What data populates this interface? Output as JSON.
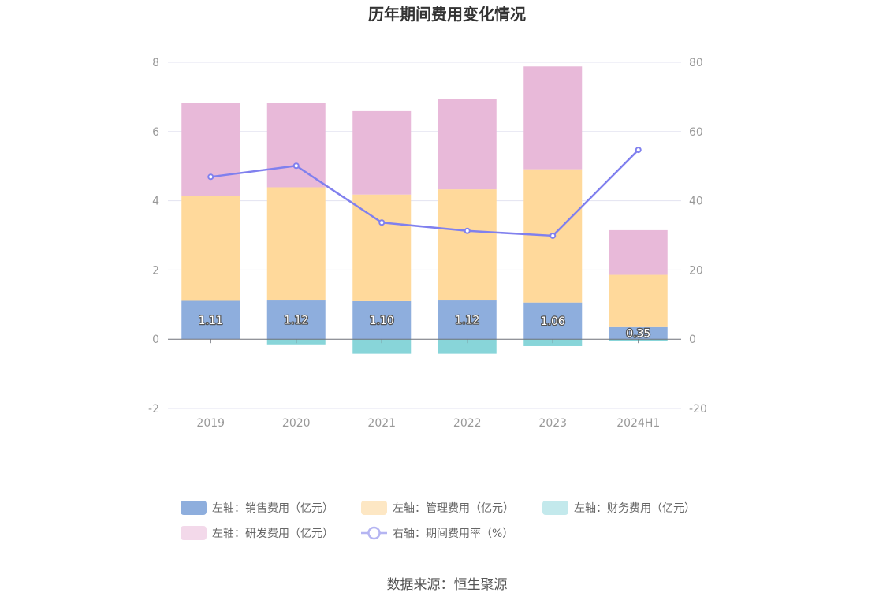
{
  "chart_data": {
    "type": "bar",
    "stacked": true,
    "title": "历年期间费用变化情况",
    "categories": [
      "2019",
      "2020",
      "2021",
      "2022",
      "2023",
      "2024H1"
    ],
    "y_left": {
      "min": -2,
      "max": 8,
      "ticks": [
        "8",
        "6",
        "4",
        "2",
        "0",
        "-2"
      ]
    },
    "y_right": {
      "min": -20,
      "max": 80,
      "ticks": [
        "80",
        "60",
        "40",
        "20",
        "0",
        "-20"
      ]
    },
    "grid": true,
    "legend_position": "bottom",
    "series": [
      {
        "name": "左轴：销售费用（亿元）",
        "axis": "left",
        "type": "bar",
        "color": "#8eaedd",
        "values": [
          1.11,
          1.12,
          1.1,
          1.12,
          1.06,
          0.35
        ],
        "labels": [
          "1.11",
          "1.12",
          "1.10",
          "1.12",
          "1.06",
          "0.35"
        ]
      },
      {
        "name": "左轴：管理费用（亿元）",
        "axis": "left",
        "type": "bar",
        "color": "#ffd99b",
        "values": [
          3.02,
          3.27,
          3.08,
          3.21,
          3.85,
          1.51
        ]
      },
      {
        "name": "左轴：财务费用（亿元）",
        "axis": "left",
        "type": "bar",
        "color": "#88d5d9",
        "values": [
          0.0,
          -0.15,
          -0.42,
          -0.42,
          -0.2,
          -0.06
        ]
      },
      {
        "name": "左轴：研发费用（亿元）",
        "axis": "left",
        "type": "bar",
        "color": "#e8b9d9",
        "values": [
          2.7,
          2.43,
          2.41,
          2.62,
          2.97,
          1.29
        ]
      },
      {
        "name": "右轴：期间费用率（%）",
        "axis": "right",
        "type": "line",
        "color": "#8080ee",
        "values": [
          46.9,
          50.1,
          33.7,
          31.3,
          29.9,
          54.7
        ]
      }
    ],
    "source": "数据来源：恒生聚源"
  }
}
